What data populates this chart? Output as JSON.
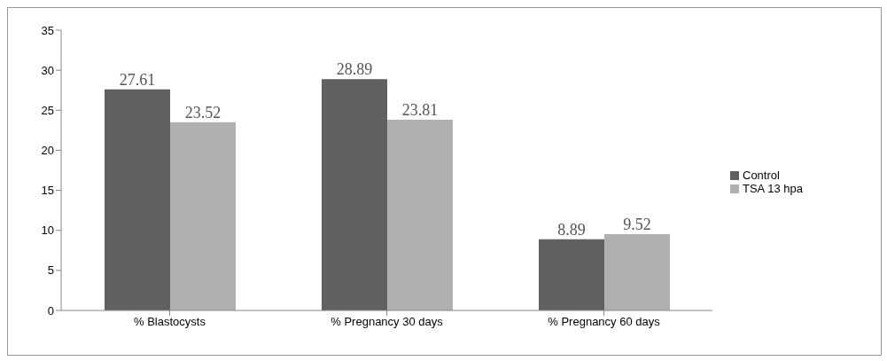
{
  "chart_data": {
    "type": "bar",
    "categories": [
      "% Blastocysts",
      "% Pregnancy 30 days",
      "% Pregnancy 60 days"
    ],
    "series": [
      {
        "name": "Control",
        "color": "#606060",
        "values": [
          27.61,
          28.89,
          8.89
        ]
      },
      {
        "name": "TSA 13 hpa",
        "color": "#b0b0b0",
        "values": [
          23.52,
          23.81,
          9.52
        ]
      }
    ],
    "ylim": [
      0,
      35
    ],
    "yticks": [
      0,
      5,
      10,
      15,
      20,
      25,
      30,
      35
    ],
    "grid": false,
    "legend": "right",
    "data_labels": true
  }
}
